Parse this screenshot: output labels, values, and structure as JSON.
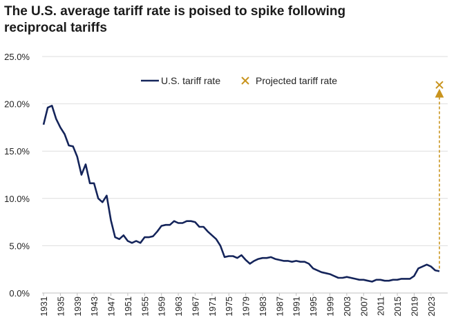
{
  "chart_data": {
    "type": "line",
    "title": "The U.S. average tariff rate is poised to spike following reciprocal tariffs",
    "xlabel": "",
    "ylabel": "",
    "xlim": [
      1931,
      2025
    ],
    "ylim": [
      0,
      25
    ],
    "y_ticks": [
      "0.0%",
      "5.0%",
      "10.0%",
      "15.0%",
      "20.0%",
      "25.0%"
    ],
    "x_ticks": [
      "1931",
      "1935",
      "1939",
      "1943",
      "1947",
      "1951",
      "1955",
      "1959",
      "1963",
      "1967",
      "1971",
      "1975",
      "1979",
      "1983",
      "1987",
      "1991",
      "1995",
      "1999",
      "2003",
      "2007",
      "2011",
      "2015",
      "2019",
      "2023"
    ],
    "grid": "horizontal",
    "legend_position": "top",
    "series": [
      {
        "name": "U.S. tariff rate",
        "color": "#14245a",
        "points": [
          [
            1931,
            17.8
          ],
          [
            1932,
            19.6
          ],
          [
            1933,
            19.8
          ],
          [
            1934,
            18.4
          ],
          [
            1935,
            17.5
          ],
          [
            1936,
            16.8
          ],
          [
            1937,
            15.6
          ],
          [
            1938,
            15.5
          ],
          [
            1939,
            14.4
          ],
          [
            1940,
            12.5
          ],
          [
            1941,
            13.6
          ],
          [
            1942,
            11.6
          ],
          [
            1943,
            11.6
          ],
          [
            1944,
            10.0
          ],
          [
            1945,
            9.6
          ],
          [
            1946,
            10.3
          ],
          [
            1947,
            7.7
          ],
          [
            1948,
            5.9
          ],
          [
            1949,
            5.7
          ],
          [
            1950,
            6.1
          ],
          [
            1951,
            5.5
          ],
          [
            1952,
            5.3
          ],
          [
            1953,
            5.5
          ],
          [
            1954,
            5.3
          ],
          [
            1955,
            5.9
          ],
          [
            1956,
            5.9
          ],
          [
            1957,
            6.0
          ],
          [
            1958,
            6.5
          ],
          [
            1959,
            7.1
          ],
          [
            1960,
            7.2
          ],
          [
            1961,
            7.2
          ],
          [
            1962,
            7.6
          ],
          [
            1963,
            7.4
          ],
          [
            1964,
            7.4
          ],
          [
            1965,
            7.6
          ],
          [
            1966,
            7.6
          ],
          [
            1967,
            7.5
          ],
          [
            1968,
            7.0
          ],
          [
            1969,
            7.0
          ],
          [
            1970,
            6.5
          ],
          [
            1971,
            6.1
          ],
          [
            1972,
            5.7
          ],
          [
            1973,
            5.0
          ],
          [
            1974,
            3.8
          ],
          [
            1975,
            3.9
          ],
          [
            1976,
            3.9
          ],
          [
            1977,
            3.7
          ],
          [
            1978,
            4.0
          ],
          [
            1979,
            3.5
          ],
          [
            1980,
            3.1
          ],
          [
            1981,
            3.4
          ],
          [
            1982,
            3.6
          ],
          [
            1983,
            3.7
          ],
          [
            1984,
            3.7
          ],
          [
            1985,
            3.8
          ],
          [
            1986,
            3.6
          ],
          [
            1987,
            3.5
          ],
          [
            1988,
            3.4
          ],
          [
            1989,
            3.4
          ],
          [
            1990,
            3.3
          ],
          [
            1991,
            3.4
          ],
          [
            1992,
            3.3
          ],
          [
            1993,
            3.3
          ],
          [
            1994,
            3.1
          ],
          [
            1995,
            2.6
          ],
          [
            1996,
            2.4
          ],
          [
            1997,
            2.2
          ],
          [
            1998,
            2.1
          ],
          [
            1999,
            2.0
          ],
          [
            2000,
            1.8
          ],
          [
            2001,
            1.6
          ],
          [
            2002,
            1.6
          ],
          [
            2003,
            1.7
          ],
          [
            2004,
            1.6
          ],
          [
            2005,
            1.5
          ],
          [
            2006,
            1.4
          ],
          [
            2007,
            1.4
          ],
          [
            2008,
            1.3
          ],
          [
            2009,
            1.2
          ],
          [
            2010,
            1.4
          ],
          [
            2011,
            1.4
          ],
          [
            2012,
            1.3
          ],
          [
            2013,
            1.3
          ],
          [
            2014,
            1.4
          ],
          [
            2015,
            1.4
          ],
          [
            2016,
            1.5
          ],
          [
            2017,
            1.5
          ],
          [
            2018,
            1.5
          ],
          [
            2019,
            1.8
          ],
          [
            2020,
            2.6
          ],
          [
            2021,
            2.8
          ],
          [
            2022,
            3.0
          ],
          [
            2023,
            2.8
          ],
          [
            2024,
            2.4
          ],
          [
            2025,
            2.3
          ]
        ]
      },
      {
        "name": "Projected tariff rate",
        "color": "#c9941e",
        "marker": "x",
        "points": [
          [
            2025,
            22.0
          ]
        ]
      }
    ]
  }
}
